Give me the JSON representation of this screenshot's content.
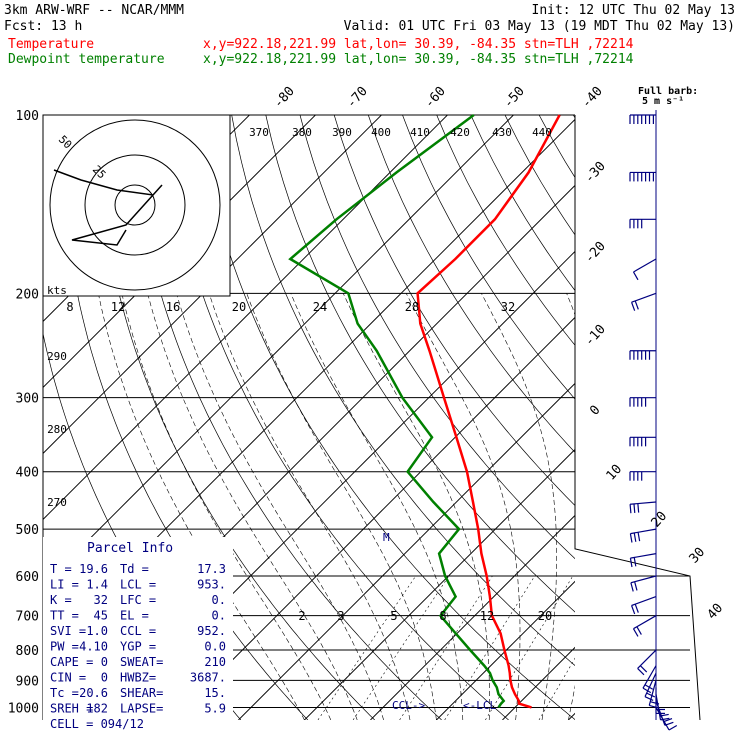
{
  "header": {
    "line1_left": "3km ARW-WRF -- NCAR/MMM",
    "line1_right": "Init: 12 UTC Thu 02 May 13",
    "line2_left": "Fcst:    13 h",
    "line2_right": "Valid: 01 UTC Fri 03 May 13 (19 MDT Thu 02 May 13)",
    "temp_label": "Temperature",
    "temp_loc": "x,y=922.18,221.99   lat,lon= 30.39, -84.35   stn=TLH ,72214",
    "dew_label": "Dewpoint temperature",
    "dew_loc": "x,y=922.18,221.99   lat,lon= 30.39, -84.35   stn=TLH ,72214",
    "barb_note_1": "Full barb:",
    "barb_note_2": "5 m s⁻¹"
  },
  "colors": {
    "temperature": "#ff0000",
    "dewpoint": "#008000",
    "barbs": "#000080",
    "parcel_title": "#000080",
    "grid": "#000000"
  },
  "parcel_info": {
    "title": "Parcel Info",
    "rows": [
      [
        "T  =",
        "19.6",
        "Td =",
        "17.3"
      ],
      [
        "LI =",
        "1.4",
        "LCL =",
        "953."
      ],
      [
        "K  =",
        "32",
        "LFC =",
        "0."
      ],
      [
        "TT =",
        "45",
        "EL  =",
        "0."
      ],
      [
        "SVI =",
        "1.0",
        "CCL =",
        "952."
      ],
      [
        "PW =",
        "4.10",
        "YGP =",
        "0.0"
      ],
      [
        "CAPE =",
        "0",
        "SWEAT=",
        "210"
      ],
      [
        "CIN =",
        "0",
        "HWBZ=",
        "3687."
      ],
      [
        "Tc =",
        "20.6",
        "SHEAR=",
        "15."
      ],
      [
        "SREH =",
        "182",
        "LAPSE=",
        "5.9"
      ]
    ],
    "cell": "CELL = 094/12"
  },
  "hodograph": {
    "unit_label": "kts",
    "ring_labels": [
      "50",
      "25"
    ],
    "speed_ticks": [
      "8",
      "12",
      "16",
      "20",
      "24",
      "28",
      "32"
    ]
  },
  "chart_data": {
    "type": "line",
    "title": "",
    "xlabel": "",
    "ylabel": "",
    "y_scale": "log-pressure",
    "ylim": [
      1000,
      100
    ],
    "pressure_ticks": [
      100,
      200,
      300,
      400,
      500,
      600,
      700,
      800,
      900,
      1000
    ],
    "isotherm_labels": [
      "-80",
      "-70",
      "-60",
      "-50",
      "-40",
      "-30",
      "-20",
      "-10",
      "0",
      "10",
      "20",
      "30",
      "40"
    ],
    "theta_labels_top": [
      "370",
      "380",
      "390",
      "400",
      "410",
      "420",
      "430",
      "440"
    ],
    "theta_labels_left": [
      "290",
      "280",
      "270"
    ],
    "mixing_ratio_labels": [
      "2",
      "3",
      "5",
      "8",
      "12",
      "20"
    ],
    "markers": [
      "CCL",
      "LCL",
      "M"
    ],
    "series": [
      {
        "name": "Temperature",
        "color": "#ff0000",
        "pressure": [
          1000,
          985,
          975,
          950,
          925,
          900,
          875,
          850,
          800,
          750,
          700,
          650,
          600,
          550,
          500,
          450,
          400,
          350,
          300,
          250,
          225,
          200,
          175,
          150,
          125,
          100
        ],
        "temperature_c": [
          22.5,
          20.0,
          19.6,
          18.0,
          16.5,
          15.2,
          14.0,
          12.7,
          9.7,
          6.6,
          2.6,
          -0.6,
          -4.2,
          -8.4,
          -12.6,
          -17.5,
          -23.0,
          -29.8,
          -37.7,
          -47.0,
          -52.5,
          -57.5,
          -57.0,
          -57.0,
          -59.0,
          -63.0
        ]
      },
      {
        "name": "Dewpoint temperature",
        "color": "#008000",
        "pressure": [
          1000,
          985,
          975,
          950,
          925,
          900,
          875,
          850,
          800,
          750,
          700,
          650,
          600,
          550,
          500,
          450,
          400,
          350,
          300,
          250,
          225,
          200,
          175,
          150,
          125,
          100
        ],
        "temperature_c": [
          17.5,
          17.3,
          17.3,
          15.5,
          14.2,
          12.5,
          11.0,
          9.0,
          4.5,
          -0.2,
          -5.2,
          -5.8,
          -10.5,
          -14.8,
          -15.5,
          -23.5,
          -32.0,
          -33.5,
          -44.0,
          -55.0,
          -62.0,
          -68.0,
          -82.0,
          -81.0,
          -79.0,
          -76.0
        ]
      }
    ],
    "wind_profile": {
      "pressure": [
        1000,
        975,
        950,
        925,
        900,
        875,
        850,
        800,
        700,
        650,
        600,
        550,
        500,
        450,
        400,
        350,
        300,
        250,
        200,
        175,
        150,
        125,
        100
      ],
      "speed_ms": [
        9,
        10,
        12,
        13,
        14,
        14,
        13,
        12,
        11,
        12,
        13,
        14,
        15,
        18,
        22,
        25,
        28,
        30,
        10,
        8,
        22,
        35,
        35
      ],
      "direction_deg": [
        150,
        160,
        170,
        180,
        195,
        205,
        210,
        225,
        240,
        250,
        255,
        260,
        260,
        265,
        270,
        270,
        270,
        270,
        250,
        240,
        270,
        270,
        270
      ]
    },
    "hodograph_trace_kts": [
      [
        -18,
        -14
      ],
      [
        -12,
        -10
      ],
      [
        -4,
        -6
      ],
      [
        4,
        -4
      ],
      [
        6,
        -8
      ],
      [
        -2,
        8
      ],
      [
        -10,
        12
      ],
      [
        -14,
        14
      ],
      [
        -4,
        16
      ],
      [
        -2,
        10
      ]
    ]
  }
}
